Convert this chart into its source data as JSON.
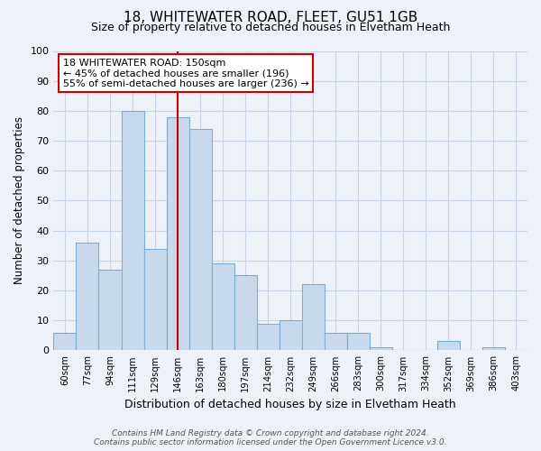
{
  "title1": "18, WHITEWATER ROAD, FLEET, GU51 1GB",
  "title2": "Size of property relative to detached houses in Elvetham Heath",
  "xlabel": "Distribution of detached houses by size in Elvetham Heath",
  "ylabel": "Number of detached properties",
  "bar_labels": [
    "60sqm",
    "77sqm",
    "94sqm",
    "111sqm",
    "129sqm",
    "146sqm",
    "163sqm",
    "180sqm",
    "197sqm",
    "214sqm",
    "232sqm",
    "249sqm",
    "266sqm",
    "283sqm",
    "300sqm",
    "317sqm",
    "334sqm",
    "352sqm",
    "369sqm",
    "386sqm",
    "403sqm"
  ],
  "bar_values": [
    6,
    36,
    27,
    80,
    34,
    78,
    74,
    29,
    25,
    9,
    10,
    22,
    6,
    6,
    1,
    0,
    0,
    3,
    0,
    1,
    0
  ],
  "bar_color": "#c8d9ee",
  "bar_edge_color": "#7aadd4",
  "vline_x": 5,
  "vline_color": "#cc0000",
  "annotation_title": "18 WHITEWATER ROAD: 150sqm",
  "annotation_line1": "← 45% of detached houses are smaller (196)",
  "annotation_line2": "55% of semi-detached houses are larger (236) →",
  "annotation_box_color": "#ffffff",
  "annotation_box_edge": "#cc0000",
  "ylim": [
    0,
    100
  ],
  "yticks": [
    0,
    10,
    20,
    30,
    40,
    50,
    60,
    70,
    80,
    90,
    100
  ],
  "footer1": "Contains HM Land Registry data © Crown copyright and database right 2024.",
  "footer2": "Contains public sector information licensed under the Open Government Licence v3.0.",
  "bg_color": "#eef2f8",
  "grid_color": "#c8d4e8"
}
